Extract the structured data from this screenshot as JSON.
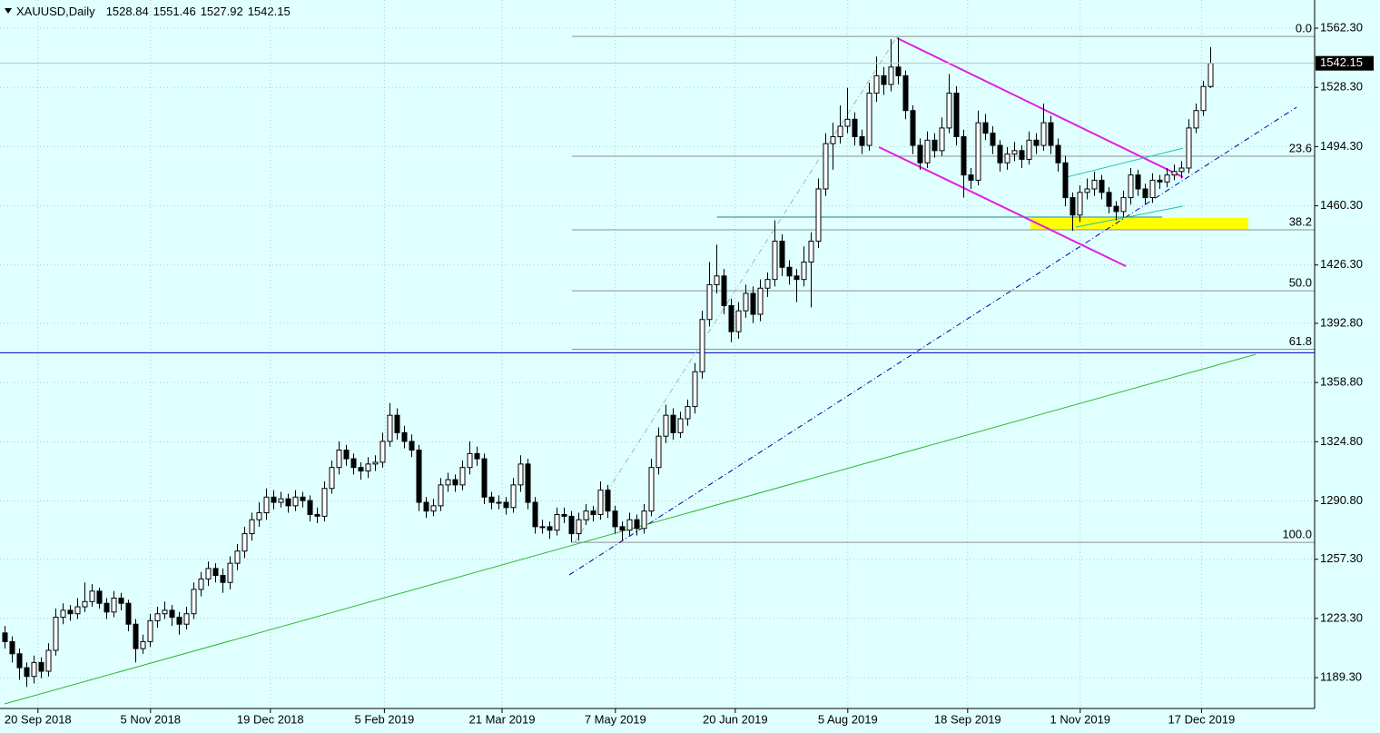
{
  "chart_data": {
    "type": "candlestick",
    "symbol": "XAUUSD,Daily",
    "ylim": [
      1171.6,
      1578.5
    ],
    "yticks": [
      {
        "value": 1189.3,
        "label": "1189.30"
      },
      {
        "value": 1223.3,
        "label": "1223.30"
      },
      {
        "value": 1257.3,
        "label": "1257.30"
      },
      {
        "value": 1290.8,
        "label": "1290.80"
      },
      {
        "value": 1324.8,
        "label": "1324.80"
      },
      {
        "value": 1358.8,
        "label": "1358.80"
      },
      {
        "value": 1392.8,
        "label": "1392.80"
      },
      {
        "value": 1426.3,
        "label": "1426.30"
      },
      {
        "value": 1460.3,
        "label": "1460.30"
      },
      {
        "value": 1494.3,
        "label": "1494.30"
      },
      {
        "value": 1528.3,
        "label": "1528.30"
      },
      {
        "value": 1562.3,
        "label": "1562.30"
      }
    ],
    "xlim": [
      -0.625,
      180.375
    ],
    "xticks": [
      {
        "value": 4.6,
        "label": "20 Sep 2018"
      },
      {
        "value": 20.1,
        "label": "5 Nov 2018"
      },
      {
        "value": 36.6,
        "label": "19 Dec 2018"
      },
      {
        "value": 52.3,
        "label": "5 Feb 2019"
      },
      {
        "value": 68.5,
        "label": "21 Mar 2019"
      },
      {
        "value": 84.1,
        "label": "7 May 2019"
      },
      {
        "value": 100.6,
        "label": "20 Jun 2019"
      },
      {
        "value": 116.1,
        "label": "5 Aug 2019"
      },
      {
        "value": 132.6,
        "label": "18 Sep 2019"
      },
      {
        "value": 148.1,
        "label": "1 Nov 2019"
      },
      {
        "value": 164.8,
        "label": "17 Dec 2019"
      }
    ],
    "grid": true,
    "bull_color": "#ffffff",
    "bear_color": "#000000",
    "ohlc": [
      [
        1215,
        1219,
        1206,
        1210
      ],
      [
        1210,
        1213,
        1198,
        1203
      ],
      [
        1203,
        1206,
        1188,
        1195
      ],
      [
        1195,
        1198,
        1184,
        1190
      ],
      [
        1190,
        1202,
        1186,
        1198
      ],
      [
        1198,
        1201,
        1189,
        1193
      ],
      [
        1193,
        1209,
        1190,
        1205
      ],
      [
        1205,
        1229,
        1202,
        1224
      ],
      [
        1224,
        1232,
        1220,
        1228
      ],
      [
        1228,
        1231,
        1222,
        1226
      ],
      [
        1226,
        1235,
        1223,
        1230
      ],
      [
        1230,
        1244,
        1227,
        1233
      ],
      [
        1233,
        1243,
        1230,
        1239
      ],
      [
        1239,
        1241,
        1229,
        1232
      ],
      [
        1232,
        1235,
        1223,
        1227
      ],
      [
        1227,
        1239,
        1224,
        1235
      ],
      [
        1235,
        1238,
        1228,
        1232
      ],
      [
        1232,
        1234,
        1216,
        1220
      ],
      [
        1220,
        1223,
        1198,
        1206
      ],
      [
        1206,
        1214,
        1203,
        1210
      ],
      [
        1210,
        1226,
        1207,
        1222
      ],
      [
        1222,
        1230,
        1218,
        1226
      ],
      [
        1226,
        1233,
        1223,
        1228
      ],
      [
        1228,
        1231,
        1219,
        1224
      ],
      [
        1224,
        1227,
        1214,
        1220
      ],
      [
        1220,
        1230,
        1217,
        1226
      ],
      [
        1226,
        1244,
        1223,
        1240
      ],
      [
        1240,
        1250,
        1236,
        1246
      ],
      [
        1246,
        1256,
        1242,
        1252
      ],
      [
        1252,
        1255,
        1244,
        1248
      ],
      [
        1248,
        1252,
        1238,
        1244
      ],
      [
        1244,
        1259,
        1240,
        1255
      ],
      [
        1255,
        1266,
        1251,
        1262
      ],
      [
        1262,
        1276,
        1258,
        1272
      ],
      [
        1272,
        1284,
        1268,
        1280
      ],
      [
        1280,
        1290,
        1276,
        1284
      ],
      [
        1284,
        1298,
        1280,
        1293
      ],
      [
        1293,
        1297,
        1286,
        1290
      ],
      [
        1290,
        1296,
        1287,
        1292
      ],
      [
        1292,
        1295,
        1284,
        1288
      ],
      [
        1288,
        1297,
        1285,
        1293
      ],
      [
        1293,
        1296,
        1287,
        1291
      ],
      [
        1291,
        1294,
        1279,
        1283
      ],
      [
        1283,
        1287,
        1278,
        1282
      ],
      [
        1282,
        1302,
        1279,
        1298
      ],
      [
        1298,
        1314,
        1295,
        1310
      ],
      [
        1310,
        1325,
        1306,
        1320
      ],
      [
        1320,
        1323,
        1311,
        1315
      ],
      [
        1315,
        1318,
        1306,
        1310
      ],
      [
        1310,
        1313,
        1303,
        1308
      ],
      [
        1308,
        1316,
        1304,
        1312
      ],
      [
        1312,
        1317,
        1308,
        1313
      ],
      [
        1313,
        1330,
        1310,
        1325
      ],
      [
        1325,
        1347,
        1322,
        1340
      ],
      [
        1340,
        1344,
        1326,
        1330
      ],
      [
        1330,
        1334,
        1321,
        1325
      ],
      [
        1325,
        1329,
        1316,
        1320
      ],
      [
        1320,
        1323,
        1285,
        1290
      ],
      [
        1290,
        1293,
        1281,
        1285
      ],
      [
        1285,
        1292,
        1282,
        1288
      ],
      [
        1288,
        1304,
        1285,
        1300
      ],
      [
        1300,
        1307,
        1296,
        1303
      ],
      [
        1303,
        1306,
        1296,
        1300
      ],
      [
        1300,
        1314,
        1297,
        1310
      ],
      [
        1310,
        1325,
        1306,
        1318
      ],
      [
        1318,
        1322,
        1311,
        1315
      ],
      [
        1315,
        1318,
        1289,
        1293
      ],
      [
        1293,
        1296,
        1286,
        1290
      ],
      [
        1290,
        1294,
        1286,
        1290
      ],
      [
        1290,
        1293,
        1283,
        1287
      ],
      [
        1287,
        1304,
        1284,
        1300
      ],
      [
        1300,
        1317,
        1296,
        1312
      ],
      [
        1312,
        1315,
        1286,
        1290
      ],
      [
        1290,
        1293,
        1272,
        1276
      ],
      [
        1276,
        1280,
        1272,
        1276
      ],
      [
        1276,
        1279,
        1269,
        1274
      ],
      [
        1274,
        1287,
        1271,
        1283
      ],
      [
        1283,
        1287,
        1278,
        1282
      ],
      [
        1282,
        1285,
        1267,
        1272
      ],
      [
        1272,
        1284,
        1268,
        1280
      ],
      [
        1280,
        1289,
        1277,
        1285
      ],
      [
        1285,
        1288,
        1279,
        1283
      ],
      [
        1283,
        1302,
        1280,
        1297
      ],
      [
        1297,
        1300,
        1281,
        1285
      ],
      [
        1285,
        1288,
        1272,
        1276
      ],
      [
        1276,
        1279,
        1268,
        1274
      ],
      [
        1274,
        1284,
        1271,
        1280
      ],
      [
        1280,
        1283,
        1271,
        1275
      ],
      [
        1275,
        1289,
        1272,
        1285
      ],
      [
        1285,
        1315,
        1282,
        1310
      ],
      [
        1310,
        1333,
        1306,
        1328
      ],
      [
        1328,
        1346,
        1324,
        1340
      ],
      [
        1340,
        1344,
        1326,
        1330
      ],
      [
        1330,
        1342,
        1327,
        1338
      ],
      [
        1338,
        1349,
        1334,
        1345
      ],
      [
        1345,
        1370,
        1341,
        1365
      ],
      [
        1365,
        1400,
        1361,
        1395
      ],
      [
        1395,
        1428,
        1391,
        1415
      ],
      [
        1415,
        1438,
        1410,
        1420
      ],
      [
        1420,
        1424,
        1398,
        1403
      ],
      [
        1403,
        1407,
        1382,
        1388
      ],
      [
        1388,
        1405,
        1384,
        1400
      ],
      [
        1400,
        1415,
        1396,
        1410
      ],
      [
        1410,
        1414,
        1393,
        1398
      ],
      [
        1398,
        1418,
        1394,
        1413
      ],
      [
        1413,
        1422,
        1408,
        1418
      ],
      [
        1418,
        1452,
        1414,
        1440
      ],
      [
        1440,
        1444,
        1420,
        1425
      ],
      [
        1425,
        1429,
        1415,
        1420
      ],
      [
        1420,
        1424,
        1405,
        1418
      ],
      [
        1418,
        1437,
        1414,
        1428
      ],
      [
        1428,
        1445,
        1402,
        1440
      ],
      [
        1440,
        1476,
        1436,
        1470
      ],
      [
        1470,
        1502,
        1466,
        1496
      ],
      [
        1496,
        1508,
        1481,
        1500
      ],
      [
        1500,
        1518,
        1496,
        1506
      ],
      [
        1506,
        1528,
        1502,
        1510
      ],
      [
        1510,
        1514,
        1495,
        1500
      ],
      [
        1500,
        1504,
        1490,
        1495
      ],
      [
        1495,
        1531,
        1492,
        1525
      ],
      [
        1525,
        1546,
        1520,
        1535
      ],
      [
        1535,
        1540,
        1524,
        1530
      ],
      [
        1530,
        1556,
        1526,
        1540
      ],
      [
        1540,
        1557,
        1530,
        1535
      ],
      [
        1535,
        1538,
        1510,
        1515
      ],
      [
        1515,
        1518,
        1490,
        1495
      ],
      [
        1495,
        1499,
        1481,
        1485
      ],
      [
        1485,
        1503,
        1482,
        1498
      ],
      [
        1498,
        1502,
        1488,
        1492
      ],
      [
        1492,
        1511,
        1489,
        1505
      ],
      [
        1505,
        1536,
        1502,
        1525
      ],
      [
        1525,
        1529,
        1495,
        1500
      ],
      [
        1500,
        1504,
        1465,
        1478
      ],
      [
        1478,
        1482,
        1470,
        1475
      ],
      [
        1475,
        1515,
        1472,
        1508
      ],
      [
        1508,
        1513,
        1498,
        1502
      ],
      [
        1502,
        1506,
        1490,
        1495
      ],
      [
        1495,
        1498,
        1480,
        1485
      ],
      [
        1485,
        1494,
        1481,
        1490
      ],
      [
        1490,
        1497,
        1486,
        1492
      ],
      [
        1492,
        1495,
        1482,
        1487
      ],
      [
        1487,
        1503,
        1484,
        1498
      ],
      [
        1498,
        1502,
        1490,
        1495
      ],
      [
        1495,
        1519,
        1492,
        1508
      ],
      [
        1508,
        1512,
        1490,
        1495
      ],
      [
        1495,
        1499,
        1480,
        1485
      ],
      [
        1485,
        1489,
        1460,
        1465
      ],
      [
        1465,
        1468,
        1446,
        1455
      ],
      [
        1455,
        1472,
        1451,
        1468
      ],
      [
        1468,
        1476,
        1464,
        1470
      ],
      [
        1470,
        1480,
        1466,
        1475
      ],
      [
        1475,
        1478,
        1464,
        1468
      ],
      [
        1468,
        1471,
        1456,
        1460
      ],
      [
        1460,
        1463,
        1452,
        1457
      ],
      [
        1457,
        1469,
        1454,
        1465
      ],
      [
        1465,
        1482,
        1461,
        1478
      ],
      [
        1478,
        1481,
        1466,
        1470
      ],
      [
        1470,
        1473,
        1461,
        1465
      ],
      [
        1465,
        1479,
        1462,
        1475
      ],
      [
        1475,
        1478,
        1470,
        1474
      ],
      [
        1474,
        1482,
        1471,
        1478
      ],
      [
        1478,
        1484,
        1475,
        1480
      ],
      [
        1480,
        1486,
        1476,
        1482
      ],
      [
        1482,
        1510,
        1479,
        1505
      ],
      [
        1505,
        1519,
        1502,
        1515
      ],
      [
        1515,
        1532,
        1512,
        1528.84
      ],
      [
        1528.84,
        1551.46,
        1527.92,
        1542.15
      ]
    ],
    "fib_levels": [
      {
        "level": "0.0",
        "price": 1557.6
      },
      {
        "level": "23.6",
        "price": 1488.8
      },
      {
        "level": "38.2",
        "price": 1446.5
      },
      {
        "level": "50.0",
        "price": 1411.5
      },
      {
        "level": "61.8",
        "price": 1377.9
      },
      {
        "level": "100.0",
        "price": 1267.0
      }
    ],
    "fib_start": 78.1,
    "fib_color": "#909090",
    "hline": {
      "price": 1375.9,
      "color": "#0000c0"
    },
    "zone": {
      "x": [
        141.25,
        171.25
      ],
      "y": [
        1446.6,
        1453.4
      ],
      "color": "#ffff00"
    },
    "lines": [
      {
        "x": [
          0,
          172.25
        ],
        "y": [
          1174.2,
          1375.0
        ],
        "color": "#2db82d",
        "dash": false
      },
      {
        "x": [
          77.75,
          177.9
        ],
        "y": [
          1248.3,
          1516.9
        ],
        "color": "#0000a0",
        "dash": true
      },
      {
        "x": [
          122.9,
          162.25
        ],
        "y": [
          1556.6,
          1476.8
        ],
        "color": "#e020e0",
        "dash": false,
        "width": 2
      },
      {
        "x": [
          120.4,
          154.4
        ],
        "y": [
          1494.0,
          1425.6
        ],
        "color": "#e020e0",
        "dash": false,
        "width": 2
      },
      {
        "x": [
          146.25,
          162.25
        ],
        "y": [
          1476.8,
          1493.4
        ],
        "color": "#20c0b0",
        "dash": false
      },
      {
        "x": [
          147.5,
          162.25
        ],
        "y": [
          1448.1,
          1460.1
        ],
        "color": "#20c0b0",
        "dash": false
      },
      {
        "x": [
          98.1,
          159.4
        ],
        "y": [
          1453.8,
          1453.8
        ],
        "color": "#208080",
        "dash": false
      },
      {
        "x": [
          78.5,
          122.9
        ],
        "y": [
          1267.0,
          1557.6
        ],
        "color": "#b0b0b0",
        "dash": true
      }
    ]
  }
}
